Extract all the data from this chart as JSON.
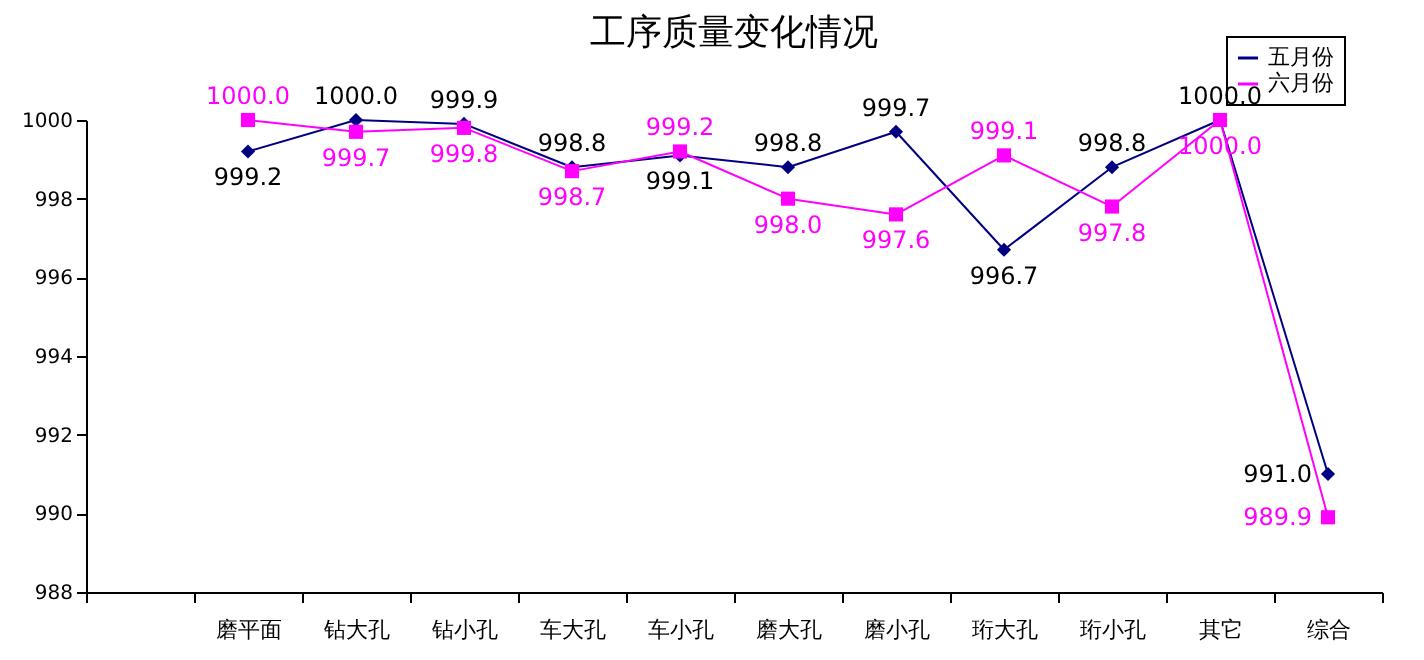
{
  "chart_data": {
    "type": "line",
    "title": "工序质量变化情况",
    "categories": [
      null,
      "磨平面",
      "钻大孔",
      "钻小孔",
      "车大孔",
      "车小孔",
      "磨大孔",
      "磨小孔",
      "珩大孔",
      "珩小孔",
      "其它",
      "综合"
    ],
    "series": [
      {
        "name": "五月份",
        "color": "#000080",
        "marker": "diamond",
        "values": [
          null,
          999.2,
          1000.0,
          999.9,
          998.8,
          999.1,
          998.8,
          999.7,
          996.7,
          998.8,
          1000.0,
          991.0
        ],
        "value_labels": [
          null,
          "999.2",
          "1000.0",
          "999.9",
          "998.8",
          "999.1",
          "998.8",
          "999.7",
          "996.7",
          "998.8",
          "1000.0",
          "991.0"
        ]
      },
      {
        "name": "六月份",
        "color": "#ff00ff",
        "marker": "square",
        "values": [
          null,
          1000.0,
          999.7,
          999.8,
          998.7,
          999.2,
          998.0,
          997.6,
          999.1,
          997.8,
          1000.0,
          989.9
        ],
        "value_labels": [
          null,
          "1000.0",
          "999.7",
          "999.8",
          "998.7",
          "999.2",
          "998.0",
          "997.6",
          "999.1",
          "997.8",
          "1000.0",
          "989.9"
        ]
      }
    ],
    "ylim": [
      988,
      1000
    ],
    "yticks": [
      988,
      990,
      992,
      994,
      996,
      998,
      1000
    ],
    "grid": false,
    "legend": "top right"
  }
}
